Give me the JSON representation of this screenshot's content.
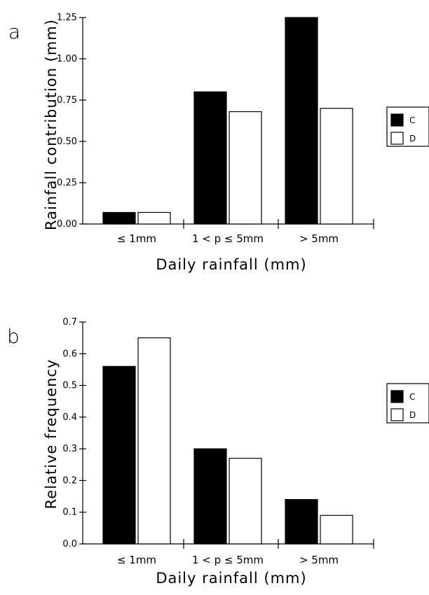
{
  "chart_data": [
    {
      "type": "bar",
      "panel_label": "a",
      "xlabel": "Daily rainfall (mm)",
      "ylabel": "Rainfall contribution (mm)",
      "categories": [
        "≤ 1mm",
        "1 < p ≤ 5mm",
        "> 5mm"
      ],
      "series": [
        {
          "name": "C",
          "color": "#000000",
          "values": [
            0.07,
            0.8,
            1.25
          ]
        },
        {
          "name": "D",
          "color": "#ffffff",
          "values": [
            0.07,
            0.68,
            0.7
          ]
        }
      ],
      "ylim": [
        0,
        1.25
      ],
      "yticks": [
        0,
        0.25,
        0.5,
        0.75,
        1.0,
        1.25
      ],
      "ytick_labels": [
        "0.00",
        "0.25",
        "0.50",
        "0.75",
        "1.00",
        "1.25"
      ],
      "grid": false,
      "legend_position": "right"
    },
    {
      "type": "bar",
      "panel_label": "b",
      "xlabel": "Daily rainfall (mm)",
      "ylabel": "Relative frequency",
      "categories": [
        "≤ 1mm",
        "1 < p ≤ 5mm",
        "> 5mm"
      ],
      "series": [
        {
          "name": "C",
          "color": "#000000",
          "values": [
            0.56,
            0.3,
            0.14
          ]
        },
        {
          "name": "D",
          "color": "#ffffff",
          "values": [
            0.65,
            0.27,
            0.09
          ]
        }
      ],
      "ylim": [
        0,
        0.7
      ],
      "yticks": [
        0,
        0.1,
        0.2,
        0.3,
        0.4,
        0.5,
        0.6,
        0.7
      ],
      "ytick_labels": [
        "0.0",
        "0.1",
        "0.2",
        "0.3",
        "0.4",
        "0.5",
        "0.6",
        "0.7"
      ],
      "grid": false,
      "legend_position": "right"
    }
  ]
}
